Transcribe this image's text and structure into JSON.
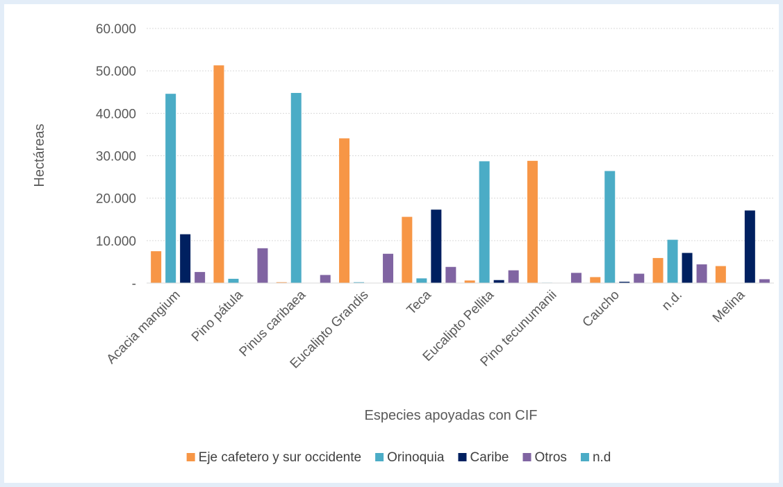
{
  "chart_data": {
    "type": "bar",
    "title": "",
    "xlabel": "Especies apoyadas con CIF",
    "ylabel": "Hectáreas",
    "ylim": [
      0,
      60000
    ],
    "yticks": [
      {
        "value": 0,
        "label": "-"
      },
      {
        "value": 10000,
        "label": "10.000"
      },
      {
        "value": 20000,
        "label": "20.000"
      },
      {
        "value": 30000,
        "label": "30.000"
      },
      {
        "value": 40000,
        "label": "40.000"
      },
      {
        "value": 50000,
        "label": "50.000"
      },
      {
        "value": 60000,
        "label": "60.000"
      }
    ],
    "grid": true,
    "legend_position": "bottom",
    "categories": [
      "Acacia mangium",
      "Pino pátula",
      "Pinus caribaea",
      "Eucalipto Grandis",
      "Teca",
      "Eucalipto Pellita",
      "Pino tecunumanii",
      "Caucho",
      "n.d.",
      "Melina"
    ],
    "series": [
      {
        "name": "Eje cafetero y sur occidente",
        "color": "#f79646",
        "values": [
          7500,
          51300,
          200,
          34100,
          15600,
          600,
          28800,
          1400,
          5900,
          4000
        ]
      },
      {
        "name": "Orinoquia",
        "color": "#4bacc6",
        "values": [
          44600,
          1000,
          44800,
          200,
          1100,
          28700,
          100,
          26400,
          10200,
          0
        ]
      },
      {
        "name": "Caribe",
        "color": "#002060",
        "values": [
          11500,
          0,
          0,
          0,
          17300,
          700,
          0,
          300,
          7100,
          17100
        ]
      },
      {
        "name": "Otros",
        "color": "#8064a2",
        "values": [
          2600,
          8200,
          1900,
          6900,
          3800,
          3000,
          2400,
          2200,
          4400,
          900
        ]
      },
      {
        "name": "n.d",
        "color": "#4bacc6",
        "values": [
          0,
          0,
          0,
          0,
          0,
          0,
          0,
          0,
          0,
          0
        ]
      }
    ]
  }
}
